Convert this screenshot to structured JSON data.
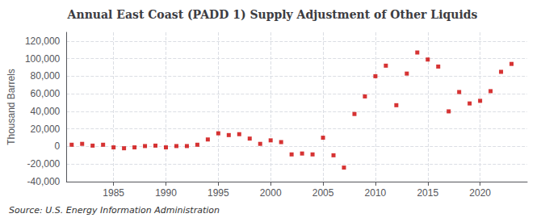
{
  "chart_data": {
    "type": "scatter",
    "title": "Annual East Coast (PADD 1) Supply Adjustment of Other Liquids",
    "ylabel": "Thousand Barrels",
    "annotation": "Source: U.S. Energy Information Administration",
    "color": "#cc0000",
    "marker": "square",
    "grid": true,
    "x": [
      1981,
      1982,
      1983,
      1984,
      1985,
      1986,
      1987,
      1988,
      1989,
      1990,
      1991,
      1992,
      1993,
      1994,
      1995,
      1996,
      1997,
      1998,
      1999,
      2000,
      2001,
      2002,
      2003,
      2004,
      2005,
      2006,
      2007,
      2008,
      2009,
      2010,
      2011,
      2012,
      2013,
      2014,
      2015,
      2016,
      2017,
      2018,
      2019,
      2020,
      2021,
      2022,
      2023
    ],
    "values": [
      2000,
      3000,
      1000,
      2000,
      -1000,
      -2000,
      -1000,
      500,
      1000,
      -1000,
      500,
      500,
      2000,
      8000,
      15000,
      13000,
      14000,
      9000,
      3000,
      7000,
      5000,
      -9000,
      -8000,
      -9000,
      10000,
      -10000,
      -24000,
      37000,
      57000,
      80000,
      92000,
      47000,
      83000,
      107000,
      99000,
      91000,
      40000,
      62000,
      49000,
      52000,
      63000,
      85000,
      94000
    ],
    "xlim": [
      1980.5,
      2024.5
    ],
    "xticks": [
      1985,
      1990,
      1995,
      2000,
      2005,
      2010,
      2015,
      2020
    ],
    "ylim": [
      -40000,
      130000
    ],
    "yticks": [
      {
        "value": -40000,
        "label": "-40,000"
      },
      {
        "value": -20000,
        "label": "-20,000"
      },
      0,
      {
        "value": 20000,
        "label": "20,000"
      },
      {
        "value": 40000,
        "label": "40,000"
      },
      {
        "value": 60000,
        "label": "60,000"
      },
      {
        "value": 80000,
        "label": "80,000"
      },
      {
        "value": 100000,
        "label": "100,000"
      },
      {
        "value": 120000,
        "label": "120,000"
      }
    ]
  }
}
